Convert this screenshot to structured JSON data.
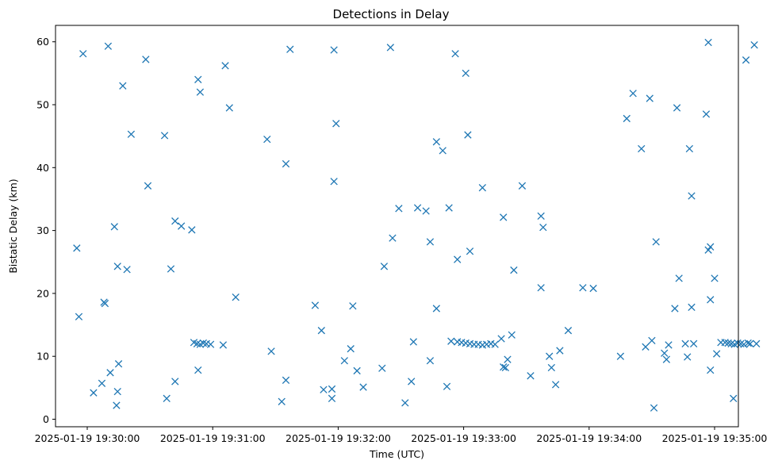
{
  "chart_data": {
    "type": "scatter",
    "title": "Detections in Delay",
    "xlabel": "Time (UTC)",
    "ylabel": "Bistatic Delay (km)",
    "x_unit": "seconds after 2025-01-19 19:30:00 UTC",
    "xlim": [
      -18,
      320
    ],
    "ylim": [
      -1,
      62.7
    ],
    "x_ticks": [
      0,
      60,
      120,
      180,
      240,
      300
    ],
    "x_tick_labels": [
      "2025-01-19 19:30:00",
      "2025-01-19 19:31:00",
      "2025-01-19 19:32:00",
      "2025-01-19 19:33:00",
      "2025-01-19 19:34:00",
      "2025-01-19 19:35:00"
    ],
    "y_ticks": [
      0,
      10,
      20,
      30,
      40,
      50,
      60
    ],
    "y_tick_labels": [
      "0",
      "10",
      "20",
      "30",
      "40",
      "50",
      "60"
    ],
    "marker": "x",
    "color": "#1f77b4",
    "grid": false,
    "points": [
      [
        -5,
        27.2
      ],
      [
        -4,
        16.3
      ],
      [
        -2,
        58.1
      ],
      [
        3,
        4.2
      ],
      [
        7,
        5.7
      ],
      [
        8,
        18.6
      ],
      [
        8.5,
        18.4
      ],
      [
        10,
        59.3
      ],
      [
        11,
        7.4
      ],
      [
        13,
        30.6
      ],
      [
        14,
        2.2
      ],
      [
        14.5,
        4.4
      ],
      [
        15,
        8.8
      ],
      [
        14.5,
        24.3
      ],
      [
        17,
        53.0
      ],
      [
        19,
        23.8
      ],
      [
        21,
        45.3
      ],
      [
        28,
        57.2
      ],
      [
        29,
        37.1
      ],
      [
        37,
        45.1
      ],
      [
        38,
        3.3
      ],
      [
        40,
        23.9
      ],
      [
        42,
        6.0
      ],
      [
        42,
        31.5
      ],
      [
        45,
        30.7
      ],
      [
        50,
        30.1
      ],
      [
        51,
        12.2
      ],
      [
        52.5,
        12.0
      ],
      [
        54,
        11.9
      ],
      [
        55.5,
        12.1
      ],
      [
        57,
        12.0
      ],
      [
        59,
        11.9
      ],
      [
        53,
        54.0
      ],
      [
        54,
        52.0
      ],
      [
        53,
        7.8
      ],
      [
        65,
        11.8
      ],
      [
        66,
        56.2
      ],
      [
        68,
        49.5
      ],
      [
        71,
        19.4
      ],
      [
        86,
        44.5
      ],
      [
        88,
        10.8
      ],
      [
        93,
        2.8
      ],
      [
        95,
        6.2
      ],
      [
        95,
        40.6
      ],
      [
        97,
        58.8
      ],
      [
        109,
        18.1
      ],
      [
        112,
        14.1
      ],
      [
        113,
        4.7
      ],
      [
        117,
        4.8
      ],
      [
        117,
        3.3
      ],
      [
        118,
        58.7
      ],
      [
        118,
        37.8
      ],
      [
        119,
        47.0
      ],
      [
        123,
        9.3
      ],
      [
        126,
        11.2
      ],
      [
        127,
        18.0
      ],
      [
        129,
        7.7
      ],
      [
        132,
        5.1
      ],
      [
        141,
        8.1
      ],
      [
        142,
        24.3
      ],
      [
        145,
        59.1
      ],
      [
        146,
        28.8
      ],
      [
        149,
        33.5
      ],
      [
        152,
        2.6
      ],
      [
        155,
        6.0
      ],
      [
        156,
        12.3
      ],
      [
        158,
        33.6
      ],
      [
        162,
        33.1
      ],
      [
        164,
        28.2
      ],
      [
        164,
        9.3
      ],
      [
        167,
        17.6
      ],
      [
        167,
        44.1
      ],
      [
        170,
        42.7
      ],
      [
        172,
        5.2
      ],
      [
        173,
        33.6
      ],
      [
        174,
        12.4
      ],
      [
        177,
        12.3
      ],
      [
        179,
        12.2
      ],
      [
        181,
        12.1
      ],
      [
        183,
        12.0
      ],
      [
        185,
        11.9
      ],
      [
        187,
        11.9
      ],
      [
        189,
        11.8
      ],
      [
        191,
        11.9
      ],
      [
        193,
        12.0
      ],
      [
        195,
        11.9
      ],
      [
        176,
        58.1
      ],
      [
        177,
        25.4
      ],
      [
        181,
        55.0
      ],
      [
        182,
        45.2
      ],
      [
        183,
        26.7
      ],
      [
        189,
        36.8
      ],
      [
        198,
        12.8
      ],
      [
        199,
        8.3
      ],
      [
        200,
        8.2
      ],
      [
        199,
        32.1
      ],
      [
        201,
        9.5
      ],
      [
        203,
        13.4
      ],
      [
        204,
        23.7
      ],
      [
        208,
        37.1
      ],
      [
        212,
        6.9
      ],
      [
        217,
        32.3
      ],
      [
        218,
        30.5
      ],
      [
        217,
        20.9
      ],
      [
        221,
        10.0
      ],
      [
        222,
        8.2
      ],
      [
        224,
        5.5
      ],
      [
        226,
        10.9
      ],
      [
        230,
        14.1
      ],
      [
        237,
        20.9
      ],
      [
        242,
        20.8
      ],
      [
        255,
        10.0
      ],
      [
        258,
        47.8
      ],
      [
        261,
        51.8
      ],
      [
        265,
        43.0
      ],
      [
        267,
        11.5
      ],
      [
        269,
        51.0
      ],
      [
        270,
        12.5
      ],
      [
        271,
        1.8
      ],
      [
        272,
        28.2
      ],
      [
        276,
        10.5
      ],
      [
        277,
        9.5
      ],
      [
        278,
        11.8
      ],
      [
        281,
        17.6
      ],
      [
        282,
        49.5
      ],
      [
        283,
        22.4
      ],
      [
        286,
        12.0
      ],
      [
        287,
        9.9
      ],
      [
        288,
        43.0
      ],
      [
        289,
        35.5
      ],
      [
        289,
        17.8
      ],
      [
        290,
        12.0
      ],
      [
        296,
        48.5
      ],
      [
        297,
        59.9
      ],
      [
        297,
        26.9
      ],
      [
        298,
        27.4
      ],
      [
        298,
        7.8
      ],
      [
        298,
        19.0
      ],
      [
        300,
        22.4
      ],
      [
        301,
        10.4
      ],
      [
        303,
        12.2
      ],
      [
        305,
        12.2
      ],
      [
        306.5,
        12.1
      ],
      [
        308,
        12.0
      ],
      [
        309,
        3.3
      ],
      [
        309.5,
        11.9
      ],
      [
        311,
        12.1
      ],
      [
        312.5,
        12.0
      ],
      [
        314,
        11.9
      ],
      [
        315,
        57.1
      ],
      [
        316,
        12.1
      ],
      [
        317,
        12.0
      ],
      [
        319,
        59.5
      ],
      [
        320,
        12.0
      ]
    ]
  }
}
